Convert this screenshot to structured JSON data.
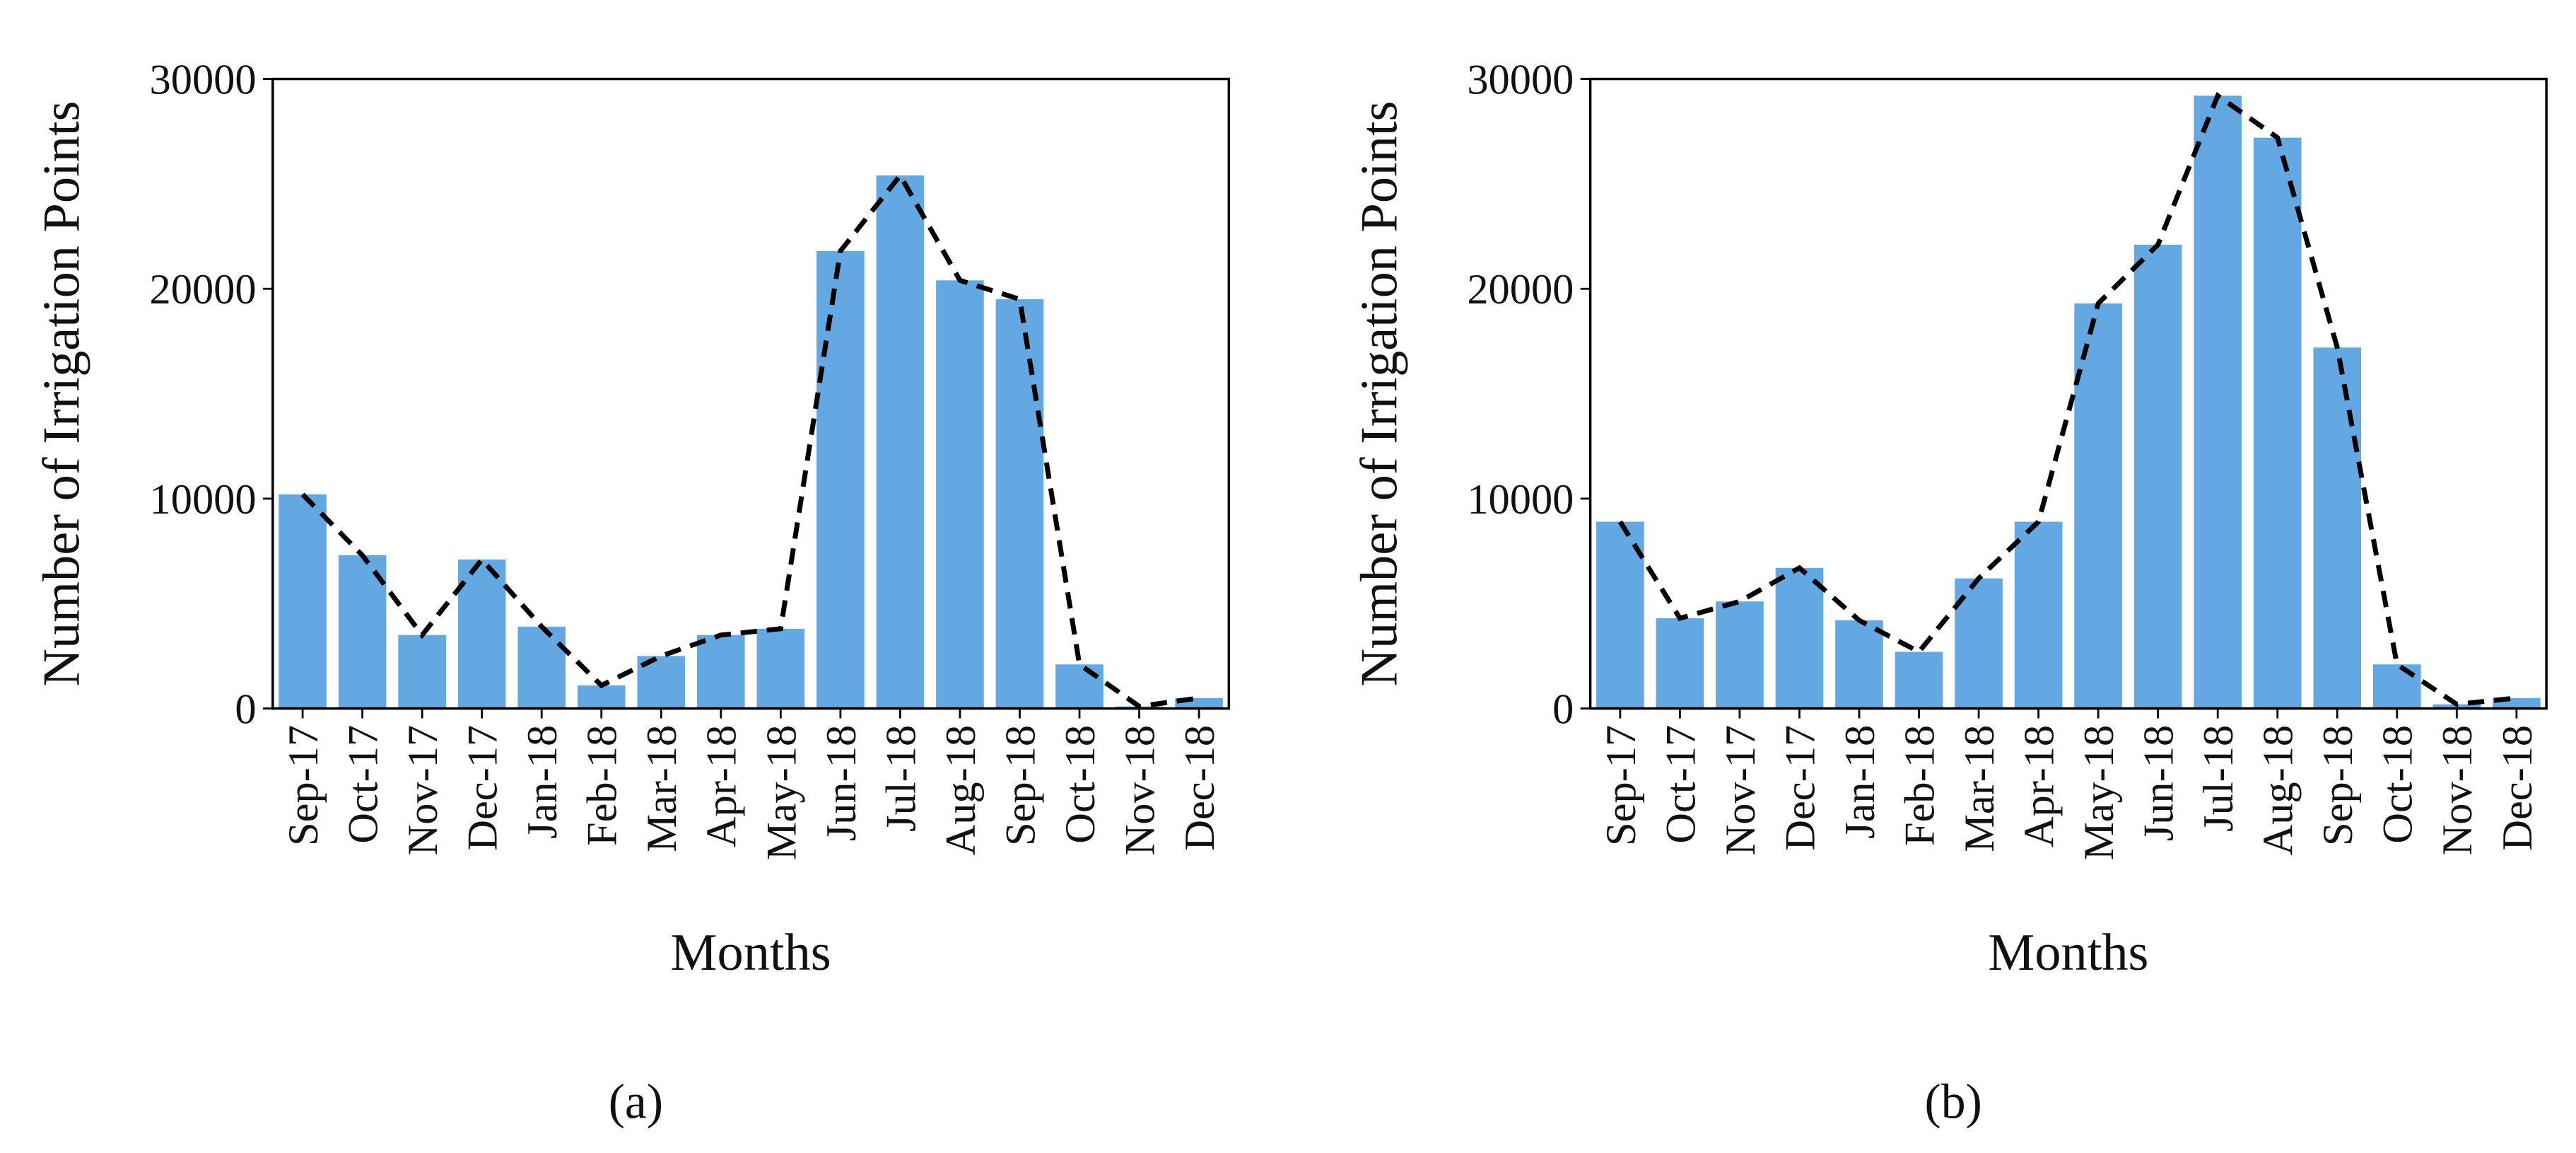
{
  "chart_data": [
    {
      "type": "bar",
      "label": "(a)",
      "xlabel": "Months",
      "ylabel": "Number of Irrigation Points",
      "categories": [
        "Sep-17",
        "Oct-17",
        "Nov-17",
        "Dec-17",
        "Jan-18",
        "Feb-18",
        "Mar-18",
        "Apr-18",
        "May-18",
        "Jun-18",
        "Jul-18",
        "Aug-18",
        "Sep-18",
        "Oct-18",
        "Nov-18",
        "Dec-18"
      ],
      "values": [
        10200,
        7300,
        3500,
        7100,
        3900,
        1100,
        2500,
        3500,
        3800,
        21800,
        25400,
        20400,
        19500,
        2100,
        100,
        500
      ],
      "color": "#63a8e2",
      "ylim": [
        0,
        30000
      ],
      "yticks": [
        0,
        10000,
        20000,
        30000
      ],
      "line_overlay": true,
      "line_color": "#000000",
      "line_style": "dashed"
    },
    {
      "type": "bar",
      "label": "(b)",
      "xlabel": "Months",
      "ylabel": "Number of Irrigation Points",
      "categories": [
        "Sep-17",
        "Oct-17",
        "Nov-17",
        "Dec-17",
        "Jan-18",
        "Feb-18",
        "Mar-18",
        "Apr-18",
        "May-18",
        "Jun-18",
        "Jul-18",
        "Aug-18",
        "Sep-18",
        "Oct-18",
        "Nov-18",
        "Dec-18"
      ],
      "values": [
        8900,
        4300,
        5100,
        6700,
        4200,
        2700,
        6200,
        8900,
        19300,
        22100,
        29200,
        27200,
        17200,
        2100,
        200,
        500
      ],
      "color": "#63a8e2",
      "ylim": [
        0,
        30000
      ],
      "yticks": [
        0,
        10000,
        20000,
        30000
      ],
      "line_overlay": true,
      "line_color": "#000000",
      "line_style": "dashed"
    }
  ]
}
